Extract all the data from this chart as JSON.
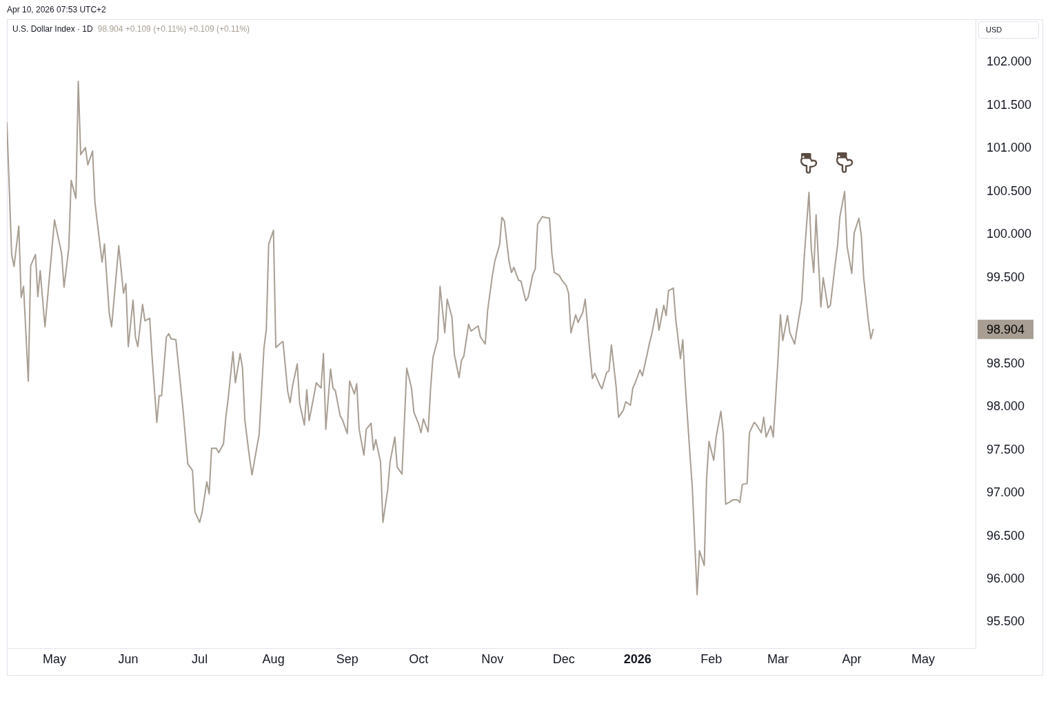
{
  "chart_data": {
    "type": "line",
    "title": "U.S. Dollar Index · 1D",
    "subtitle": "98.904 +0.109 (+0.11%) +0.109 (+0.11%)",
    "ylabel": "USD",
    "annotations": [
      "Apr 10, 2026 07:53 UTC+2",
      "98.904"
    ],
    "x": [
      "2025-04-11",
      "2025-04-13",
      "2025-04-14",
      "2025-04-16",
      "2025-04-17",
      "2025-04-18",
      "2025-04-20",
      "2025-04-21",
      "2025-04-23",
      "2025-04-24",
      "2025-04-25",
      "2025-04-27",
      "2025-05-01",
      "2025-05-04",
      "2025-05-05",
      "2025-05-07",
      "2025-05-08",
      "2025-05-10",
      "2025-05-11",
      "2025-05-12",
      "2025-05-14",
      "2025-05-15",
      "2025-05-17",
      "2025-05-18",
      "2025-05-21",
      "2025-05-22",
      "2025-05-24",
      "2025-05-25",
      "2025-05-28",
      "2025-05-30",
      "2025-05-31",
      "2025-06-01",
      "2025-06-03",
      "2025-06-04",
      "2025-06-05",
      "2025-06-07",
      "2025-06-08",
      "2025-06-10",
      "2025-06-11",
      "2025-06-13",
      "2025-06-14",
      "2025-06-15",
      "2025-06-17",
      "2025-06-18",
      "2025-06-19",
      "2025-06-21",
      "2025-06-24",
      "2025-06-26",
      "2025-06-28",
      "2025-06-29",
      "2025-07-01",
      "2025-07-02",
      "2025-07-04",
      "2025-07-05",
      "2025-07-06",
      "2025-07-08",
      "2025-07-09",
      "2025-07-11",
      "2025-07-12",
      "2025-07-13",
      "2025-07-15",
      "2025-07-16",
      "2025-07-18",
      "2025-07-19",
      "2025-07-20",
      "2025-07-22",
      "2025-07-23",
      "2025-07-25",
      "2025-07-26",
      "2025-07-28",
      "2025-07-29",
      "2025-07-30",
      "2025-08-01",
      "2025-08-02",
      "2025-08-04",
      "2025-08-05",
      "2025-08-07",
      "2025-08-08",
      "2025-08-09",
      "2025-08-11",
      "2025-08-12",
      "2025-08-14",
      "2025-08-15",
      "2025-08-16",
      "2025-08-18",
      "2025-08-19",
      "2025-08-21",
      "2025-08-22",
      "2025-08-23",
      "2025-08-25",
      "2025-08-26",
      "2025-08-27",
      "2025-08-29",
      "2025-08-30",
      "2025-09-01",
      "2025-09-02",
      "2025-09-04",
      "2025-09-05",
      "2025-09-06",
      "2025-09-08",
      "2025-09-09",
      "2025-09-11",
      "2025-09-12",
      "2025-09-13",
      "2025-09-15",
      "2025-09-16",
      "2025-09-18",
      "2025-09-19",
      "2025-09-21",
      "2025-09-22",
      "2025-09-24",
      "2025-09-25",
      "2025-09-26",
      "2025-09-28",
      "2025-09-29",
      "2025-10-01",
      "2025-10-02",
      "2025-10-03",
      "2025-10-05",
      "2025-10-06",
      "2025-10-07",
      "2025-10-09",
      "2025-10-10",
      "2025-10-12",
      "2025-10-13",
      "2025-10-15",
      "2025-10-16",
      "2025-10-18",
      "2025-10-19",
      "2025-10-20",
      "2025-10-22",
      "2025-10-23",
      "2025-10-25",
      "2025-10-26",
      "2025-10-27",
      "2025-10-29",
      "2025-10-30",
      "2025-11-01",
      "2025-11-02",
      "2025-11-04",
      "2025-11-05",
      "2025-11-06",
      "2025-11-08",
      "2025-11-09",
      "2025-11-10",
      "2025-11-12",
      "2025-11-13",
      "2025-11-15",
      "2025-11-16",
      "2025-11-18",
      "2025-11-19",
      "2025-11-20",
      "2025-11-22",
      "2025-11-23",
      "2025-11-25",
      "2025-11-26",
      "2025-11-27",
      "2025-11-29",
      "2025-11-30",
      "2025-12-02",
      "2025-12-03",
      "2025-12-04",
      "2025-12-06",
      "2025-12-07",
      "2025-12-09",
      "2025-12-10",
      "2025-12-12",
      "2025-12-13",
      "2025-12-14",
      "2025-12-16",
      "2025-12-17",
      "2025-12-19",
      "2025-12-20",
      "2025-12-21",
      "2025-12-23",
      "2025-12-24",
      "2025-12-26",
      "2025-12-27",
      "2025-12-29",
      "2025-12-30",
      "2025-12-31",
      "2026-01-02",
      "2026-01-03",
      "2026-01-05",
      "2026-01-06",
      "2026-01-07",
      "2026-01-09",
      "2026-01-10",
      "2026-01-12",
      "2026-01-13",
      "2026-01-14",
      "2026-01-16",
      "2026-01-17",
      "2026-01-19",
      "2026-01-20",
      "2026-01-21",
      "2026-01-23",
      "2026-01-24",
      "2026-01-26",
      "2026-01-27",
      "2026-01-29",
      "2026-01-30",
      "2026-01-31",
      "2026-02-02",
      "2026-02-03",
      "2026-02-05",
      "2026-02-06",
      "2026-02-07",
      "2026-02-09",
      "2026-02-10",
      "2026-02-12",
      "2026-02-13",
      "2026-02-14",
      "2026-02-16",
      "2026-02-17",
      "2026-02-19",
      "2026-02-20",
      "2026-02-22",
      "2026-02-23",
      "2026-02-24",
      "2026-02-26",
      "2026-02-27",
      "2026-03-01",
      "2026-03-02",
      "2026-03-03",
      "2026-03-05",
      "2026-03-06",
      "2026-03-08",
      "2026-03-09",
      "2026-03-11",
      "2026-03-12",
      "2026-03-14",
      "2026-03-15",
      "2026-03-16",
      "2026-03-17",
      "2026-03-19",
      "2026-03-20",
      "2026-03-22",
      "2026-03-23",
      "2026-03-25",
      "2026-03-26",
      "2026-03-27",
      "2026-03-29",
      "2026-03-30",
      "2026-04-01",
      "2026-04-02",
      "2026-04-04",
      "2026-04-05",
      "2026-04-06",
      "2026-04-08",
      "2026-04-09",
      "2026-04-10"
    ],
    "series": [
      {
        "color": "#a89e93",
        "values": [
          101.3,
          99.77,
          99.63,
          100.1,
          99.27,
          99.4,
          98.3,
          99.64,
          99.77,
          99.28,
          99.58,
          98.93,
          100.17,
          99.78,
          99.39,
          99.84,
          100.63,
          100.42,
          101.78,
          100.93,
          101.01,
          100.81,
          100.97,
          100.37,
          99.68,
          99.89,
          99.09,
          98.93,
          99.87,
          99.32,
          99.43,
          98.7,
          99.24,
          98.81,
          98.7,
          99.19,
          99.0,
          99.03,
          98.58,
          97.82,
          98.13,
          98.13,
          98.81,
          98.85,
          98.79,
          98.78,
          97.97,
          97.34,
          97.26,
          96.78,
          96.66,
          96.77,
          97.13,
          96.99,
          97.52,
          97.52,
          97.47,
          97.57,
          97.88,
          98.1,
          98.64,
          98.28,
          98.62,
          98.45,
          97.84,
          97.4,
          97.21,
          97.53,
          97.68,
          98.68,
          98.9,
          99.89,
          100.05,
          98.69,
          98.74,
          98.76,
          98.18,
          98.05,
          98.24,
          98.5,
          98.04,
          97.79,
          98.2,
          97.84,
          98.13,
          98.28,
          98.22,
          98.62,
          97.74,
          98.44,
          98.22,
          98.19,
          97.9,
          97.85,
          97.69,
          98.3,
          98.15,
          98.27,
          97.74,
          97.44,
          97.74,
          97.81,
          97.5,
          97.62,
          97.36,
          96.66,
          97.04,
          97.36,
          97.65,
          97.3,
          97.22,
          97.82,
          98.45,
          98.22,
          97.94,
          97.8,
          97.7,
          97.86,
          97.71,
          98.2,
          98.57,
          98.78,
          99.4,
          98.86,
          99.25,
          99.04,
          98.61,
          98.34,
          98.54,
          98.59,
          98.96,
          98.88,
          98.92,
          98.94,
          98.81,
          98.73,
          99.12,
          99.53,
          99.69,
          99.88,
          100.2,
          100.16,
          99.69,
          99.56,
          99.62,
          99.47,
          99.46,
          99.23,
          99.27,
          99.54,
          99.6,
          100.12,
          100.21,
          100.2,
          100.19,
          99.78,
          99.56,
          99.53,
          99.48,
          99.41,
          99.32,
          98.86,
          99.07,
          98.98,
          99.1,
          99.25,
          98.62,
          98.33,
          98.39,
          98.26,
          98.21,
          98.4,
          98.42,
          98.72,
          98.23,
          97.88,
          97.96,
          98.06,
          98.02,
          98.22,
          98.28,
          98.43,
          98.36,
          98.61,
          98.74,
          98.85,
          99.14,
          98.89,
          99.18,
          99.06,
          99.35,
          99.38,
          99.03,
          98.56,
          98.78,
          98.27,
          97.45,
          97.06,
          95.82,
          96.33,
          96.16,
          97.17,
          97.6,
          97.38,
          97.65,
          97.95,
          97.69,
          96.87,
          96.9,
          96.92,
          96.92,
          96.89,
          97.1,
          97.11,
          97.7,
          97.82,
          97.79,
          97.7,
          97.88,
          97.65,
          97.78,
          97.65,
          98.55,
          99.07,
          98.77,
          99.06,
          98.86,
          98.73,
          98.91,
          99.24,
          99.73,
          100.49,
          99.83,
          99.56,
          100.23,
          99.16,
          99.5,
          99.15,
          99.18,
          99.65,
          99.87,
          100.21,
          100.5,
          99.87,
          99.55,
          100.02,
          100.19,
          99.99,
          99.5,
          98.99,
          98.79,
          98.9
        ]
      }
    ],
    "xlim": [
      "2025-04-11",
      "2026-05-23"
    ],
    "xticks": [
      {
        "value": "2025-05-01",
        "label": "May"
      },
      {
        "value": "2025-06-01",
        "label": "Jun"
      },
      {
        "value": "2025-07-01",
        "label": "Jul"
      },
      {
        "value": "2025-08-01",
        "label": "Aug"
      },
      {
        "value": "2025-09-01",
        "label": "Sep"
      },
      {
        "value": "2025-10-01",
        "label": "Oct"
      },
      {
        "value": "2025-11-01",
        "label": "Nov"
      },
      {
        "value": "2025-12-01",
        "label": "Dec"
      },
      {
        "value": "2026-01-01",
        "label": "2026"
      },
      {
        "value": "2026-02-01",
        "label": "Feb"
      },
      {
        "value": "2026-03-01",
        "label": "Mar"
      },
      {
        "value": "2026-04-01",
        "label": "Apr"
      },
      {
        "value": "2026-05-01",
        "label": "May"
      }
    ],
    "ylim": [
      95.2,
      102.5
    ],
    "yticks": [
      {
        "value": 95.5,
        "label": "95.500"
      },
      {
        "value": 96,
        "label": "96.000"
      },
      {
        "value": 96.5,
        "label": "96.500"
      },
      {
        "value": 97,
        "label": "97.000"
      },
      {
        "value": 97.5,
        "label": "97.500"
      },
      {
        "value": 98,
        "label": "98.000"
      },
      {
        "value": 98.5,
        "label": "98.500"
      },
      {
        "value": 99.5,
        "label": "99.500"
      },
      {
        "value": 100,
        "label": "100.000"
      },
      {
        "value": 100.5,
        "label": "100.500"
      },
      {
        "value": 101,
        "label": "101.000"
      },
      {
        "value": 101.5,
        "label": "101.500"
      },
      {
        "value": 102,
        "label": "102.000"
      }
    ]
  }
}
